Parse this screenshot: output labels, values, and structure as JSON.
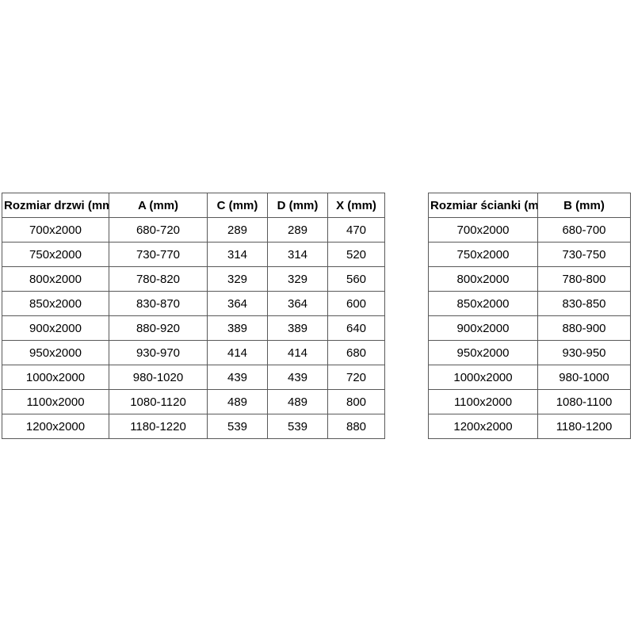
{
  "colors": {
    "background": "#ffffff",
    "border": "#595959",
    "text": "#000000"
  },
  "tables": [
    {
      "name": "door-size-table",
      "headers": [
        "Rozmiar drzwi (mm)",
        "A (mm)",
        "C (mm)",
        "D (mm)",
        "X (mm)"
      ],
      "rows": [
        [
          "700x2000",
          "680-720",
          "289",
          "289",
          "470"
        ],
        [
          "750x2000",
          "730-770",
          "314",
          "314",
          "520"
        ],
        [
          "800x2000",
          "780-820",
          "329",
          "329",
          "560"
        ],
        [
          "850x2000",
          "830-870",
          "364",
          "364",
          "600"
        ],
        [
          "900x2000",
          "880-920",
          "389",
          "389",
          "640"
        ],
        [
          "950x2000",
          "930-970",
          "414",
          "414",
          "680"
        ],
        [
          "1000x2000",
          "980-1020",
          "439",
          "439",
          "720"
        ],
        [
          "1100x2000",
          "1080-1120",
          "489",
          "489",
          "800"
        ],
        [
          "1200x2000",
          "1180-1220",
          "539",
          "539",
          "880"
        ]
      ]
    },
    {
      "name": "wall-size-table",
      "headers": [
        "Rozmiar ścianki (mm)",
        "B (mm)"
      ],
      "rows": [
        [
          "700x2000",
          "680-700"
        ],
        [
          "750x2000",
          "730-750"
        ],
        [
          "800x2000",
          "780-800"
        ],
        [
          "850x2000",
          "830-850"
        ],
        [
          "900x2000",
          "880-900"
        ],
        [
          "950x2000",
          "930-950"
        ],
        [
          "1000x2000",
          "980-1000"
        ],
        [
          "1100x2000",
          "1080-1100"
        ],
        [
          "1200x2000",
          "1180-1200"
        ]
      ]
    }
  ]
}
